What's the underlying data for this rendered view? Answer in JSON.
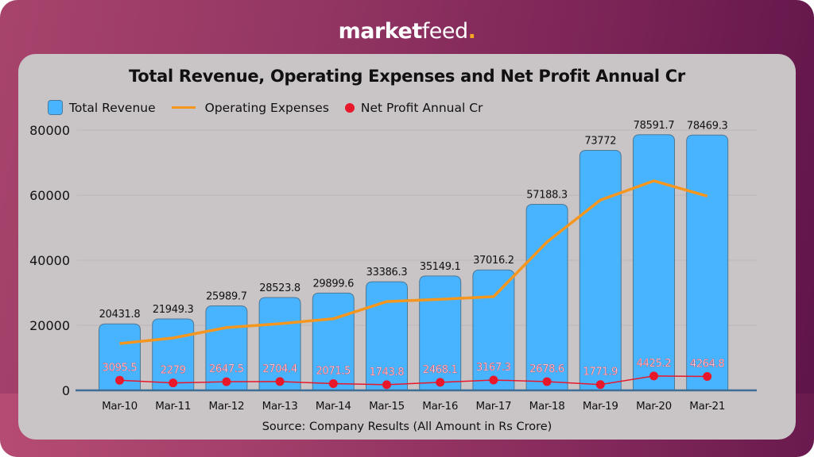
{
  "brand": {
    "part1": "market",
    "part2": "feed",
    "dot": "."
  },
  "chart_data": {
    "type": "bar",
    "title": "Total Revenue, Operating Expenses and Net Profit Annual Cr",
    "xlabel": "",
    "ylabel": "",
    "ylim": [
      0,
      80000
    ],
    "yticks": [
      0,
      20000,
      40000,
      60000,
      80000
    ],
    "grid": true,
    "legend_position": "top-left",
    "categories": [
      "Mar-10",
      "Mar-11",
      "Mar-12",
      "Mar-13",
      "Mar-14",
      "Mar-15",
      "Mar-16",
      "Mar-17",
      "Mar-18",
      "Mar-19",
      "Mar-20",
      "Mar-21"
    ],
    "series": [
      {
        "name": "Total Revenue",
        "type": "bar",
        "color": "#48b4ff",
        "values": [
          20431.8,
          21949.3,
          25989.7,
          28523.8,
          29899.6,
          33386.3,
          35149.1,
          37016.2,
          57188.3,
          73772,
          78591.7,
          78469.3
        ],
        "labels": [
          "20431.8",
          "21949.3",
          "25989.7",
          "28523.8",
          "29899.6",
          "33386.3",
          "35149.1",
          "37016.2",
          "57188.3",
          "73772",
          "78591.7",
          "78469.3"
        ]
      },
      {
        "name": "Operating Expenses",
        "type": "line",
        "color": "#f5961e",
        "values": [
          14400,
          16100,
          19300,
          20500,
          22000,
          27300,
          28000,
          28800,
          45600,
          58500,
          64400,
          59700
        ]
      },
      {
        "name": "Net Profit Annual Cr",
        "type": "line-markers",
        "color": "#e8182a",
        "values": [
          3095.5,
          2279,
          2647.5,
          2704.4,
          2071.5,
          1743.8,
          2468.1,
          3167.3,
          2678.6,
          1771.9,
          4425.2,
          4264.8
        ],
        "labels": [
          "3095.5",
          "2279",
          "2647.5",
          "2704.4",
          "2071.5",
          "1743.8",
          "2468.1",
          "3167.3",
          "2678.6",
          "1771.9",
          "4425.2",
          "4264.8"
        ]
      }
    ],
    "source": "Source: Company Results (All Amount in Rs Crore)"
  }
}
